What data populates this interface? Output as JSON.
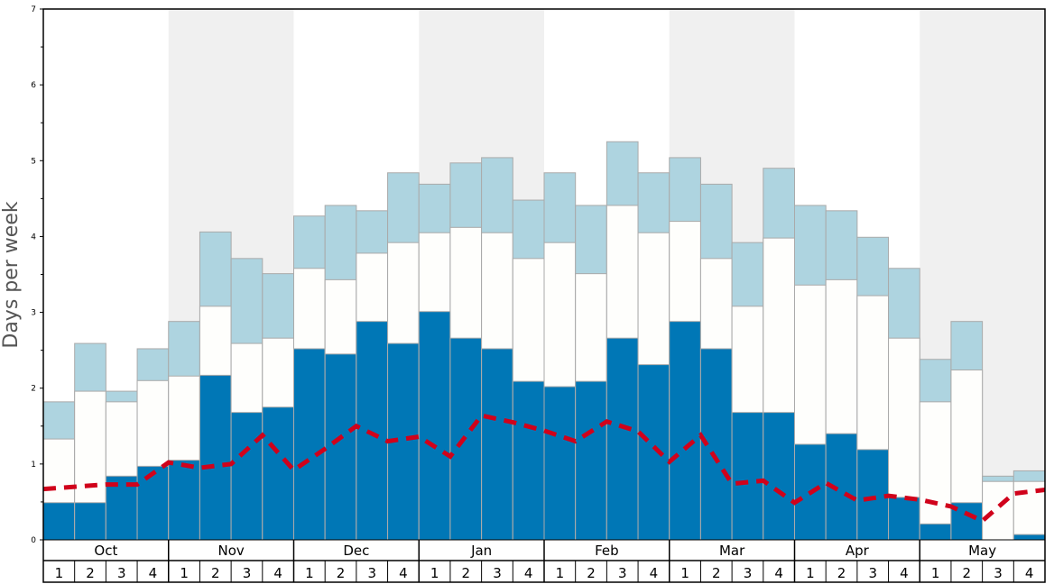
{
  "chart_data": {
    "type": "bar",
    "title": "",
    "xlabel": "",
    "ylabel": "Days per week",
    "ylim": [
      0,
      7
    ],
    "yticks": [
      "0",
      "1",
      "2",
      "3",
      "4",
      "5",
      "6",
      "7"
    ],
    "months": [
      "Oct",
      "Nov",
      "Dec",
      "Jan",
      "Feb",
      "Mar",
      "Apr",
      "May"
    ],
    "weeks": [
      "1",
      "2",
      "3",
      "4"
    ],
    "stacked_levels": {
      "series": [
        {
          "name": "level_1",
          "color": "#0077b6",
          "values": [
            0.49,
            0.49,
            0.84,
            0.97,
            1.05,
            2.17,
            1.68,
            1.75,
            2.52,
            2.45,
            2.88,
            2.59,
            3.01,
            2.66,
            2.52,
            2.09,
            2.02,
            2.09,
            2.66,
            2.31,
            2.88,
            2.52,
            1.68,
            1.68,
            1.26,
            1.4,
            1.19,
            0.56,
            0.21,
            0.49,
            0.0,
            0.07
          ]
        },
        {
          "name": "level_2",
          "color": "#fefefc",
          "values": [
            1.33,
            1.96,
            1.82,
            2.1,
            2.16,
            3.08,
            2.59,
            2.66,
            3.58,
            3.43,
            3.78,
            3.92,
            4.05,
            4.12,
            4.05,
            3.71,
            3.92,
            3.51,
            4.41,
            4.05,
            4.2,
            3.71,
            3.08,
            3.98,
            3.36,
            3.43,
            3.22,
            2.66,
            1.82,
            2.24,
            0.77,
            0.77
          ]
        },
        {
          "name": "level_3",
          "color": "#aed4e0",
          "values": [
            1.82,
            2.59,
            1.96,
            2.52,
            2.88,
            4.06,
            3.71,
            3.51,
            4.27,
            4.41,
            4.34,
            4.84,
            4.69,
            4.97,
            5.04,
            4.48,
            4.84,
            4.41,
            5.25,
            4.84,
            5.04,
            4.69,
            3.92,
            4.9,
            4.41,
            4.34,
            3.99,
            3.58,
            2.38,
            2.88,
            0.84,
            0.91
          ]
        }
      ]
    },
    "line": {
      "name": "average",
      "color": "#d0021b",
      "values": [
        0.67,
        0.7,
        0.73,
        0.73,
        1.02,
        0.95,
        1.0,
        1.38,
        0.92,
        1.2,
        1.5,
        1.3,
        1.36,
        1.1,
        1.64,
        1.55,
        1.44,
        1.3,
        1.56,
        1.43,
        1.03,
        1.38,
        0.74,
        0.78,
        0.49,
        0.75,
        0.52,
        0.58,
        0.53,
        0.44,
        0.25,
        0.61,
        0.66
      ]
    },
    "shade_color": "#f0f0f0",
    "grid": false
  }
}
